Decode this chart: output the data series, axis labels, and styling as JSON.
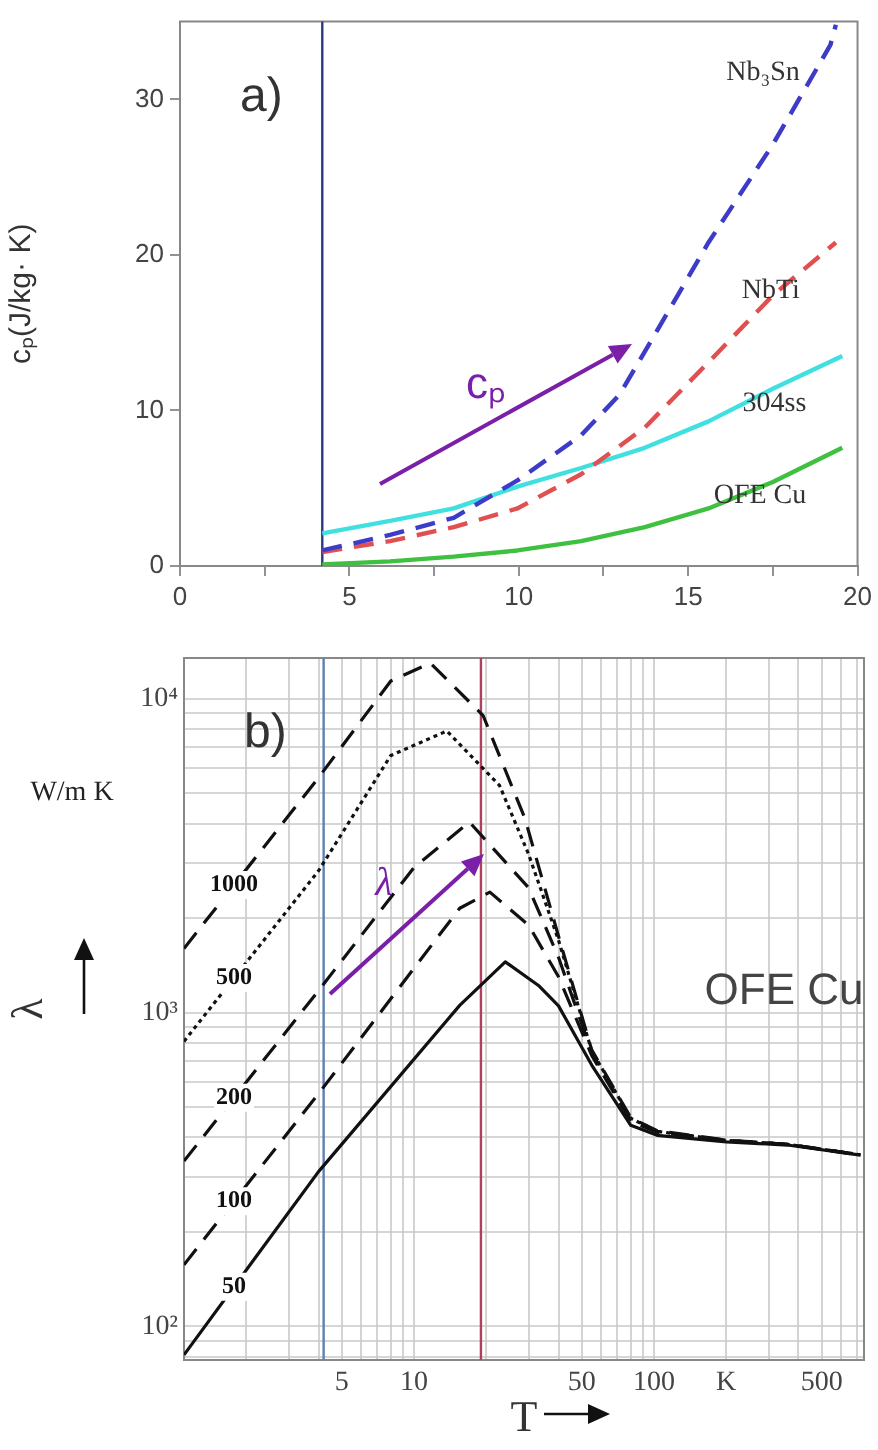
{
  "chart_data": [
    {
      "type": "line",
      "title": "a)",
      "ylabel": "cₚ(J/kg· K)",
      "xlim": [
        0,
        20
      ],
      "ylim": [
        0,
        35
      ],
      "xticks": [
        0,
        {
          "value": 2.5,
          "label": null
        },
        5,
        {
          "value": 7.5,
          "label": null
        },
        10,
        {
          "value": 12.5,
          "label": null
        },
        15,
        {
          "value": 17.5,
          "label": null
        },
        20
      ],
      "yticks": [
        0,
        10,
        20,
        30
      ],
      "grid": false,
      "marker": "none",
      "ref_lines": [
        {
          "axis": "x",
          "value": 4.2,
          "color": "#2a3a80"
        }
      ],
      "annotations": [
        "cₚ"
      ],
      "series": [
        {
          "name": "Nb₃Sn",
          "color": "#3c3cc8",
          "line_style": "dashed",
          "x": [
            4.2,
            6.2,
            8.08,
            9.96,
            11.84,
            12.97,
            14.1,
            15.6,
            17.5,
            19.2,
            19.36
          ],
          "values": [
            1.0,
            2.0,
            3.1,
            5.5,
            8.4,
            11,
            15.2,
            20.8,
            27.1,
            33.5,
            34.8
          ]
        },
        {
          "name": "NbTi",
          "color": "#e05050",
          "line_style": "dashed",
          "x": [
            4.2,
            6.2,
            8.08,
            9.96,
            11.84,
            13.72,
            15.6,
            17.5,
            19.36
          ],
          "values": [
            0.9,
            1.6,
            2.5,
            3.7,
            5.9,
            8.9,
            13.1,
            17.4,
            20.8
          ]
        },
        {
          "name": "304ss",
          "color": "#40e0e0",
          "line_style": "solid",
          "x": [
            4.2,
            6.2,
            8.08,
            9.96,
            11.84,
            13.72,
            15.6,
            17.5,
            19.55
          ],
          "values": [
            2.1,
            2.9,
            3.7,
            5.1,
            6.3,
            7.6,
            9.3,
            11.4,
            13.5
          ]
        },
        {
          "name": "OFE Cu",
          "color": "#40c040",
          "line_style": "solid",
          "x": [
            4.2,
            6.2,
            8.08,
            9.96,
            11.84,
            13.72,
            15.6,
            17.5,
            19.55
          ],
          "values": [
            0.1,
            0.3,
            0.6,
            1.0,
            1.6,
            2.5,
            3.7,
            5.4,
            7.6
          ]
        }
      ]
    },
    {
      "type": "line",
      "title": "b)",
      "ylabel": "λ",
      "xlabel": "T",
      "log": "xy",
      "xlim": [
        1.1,
        750
      ],
      "ylim": [
        78,
        13500
      ],
      "grid": true,
      "marker": "none",
      "xticks": [
        {
          "value": 2,
          "label": null
        },
        {
          "value": 3,
          "label": null
        },
        {
          "value": 4,
          "label": null
        },
        5,
        {
          "value": 6,
          "label": null
        },
        {
          "value": 7,
          "label": null
        },
        {
          "value": 8,
          "label": null
        },
        {
          "value": 9,
          "label": null
        },
        10,
        {
          "value": 20,
          "label": null
        },
        {
          "value": 30,
          "label": null
        },
        {
          "value": 40,
          "label": null
        },
        50,
        {
          "value": 60,
          "label": null
        },
        {
          "value": 70,
          "label": null
        },
        {
          "value": 80,
          "label": null
        },
        {
          "value": 90,
          "label": null
        },
        100,
        {
          "value": 200,
          "label": "K"
        },
        {
          "value": 300,
          "label": null
        },
        {
          "value": 400,
          "label": null
        },
        500,
        {
          "value": 600,
          "label": null
        },
        {
          "value": 700,
          "label": null
        }
      ],
      "yticks": [
        {
          "value": 80,
          "label": null
        },
        {
          "value": 90,
          "label": null
        },
        {
          "value": 100,
          "label": "10²"
        },
        {
          "value": 200,
          "label": null
        },
        {
          "value": 300,
          "label": null
        },
        {
          "value": 400,
          "label": null
        },
        {
          "value": 500,
          "label": null
        },
        {
          "value": 600,
          "label": null
        },
        {
          "value": 700,
          "label": null
        },
        {
          "value": 800,
          "label": null
        },
        {
          "value": 900,
          "label": null
        },
        {
          "value": 1000,
          "label": "10³"
        },
        {
          "value": 2000,
          "label": null
        },
        {
          "value": 3000,
          "label": null
        },
        {
          "value": 4000,
          "label": null
        },
        {
          "value": 5000,
          "label": null
        },
        {
          "value": 6000,
          "label": null
        },
        {
          "value": 7000,
          "label": null
        },
        {
          "value": 8000,
          "label": null
        },
        {
          "value": 9000,
          "label": null
        },
        {
          "value": 10000,
          "label": "10⁴"
        }
      ],
      "ref_lines": [
        {
          "axis": "x",
          "value": 4.2,
          "color": "#6080b0"
        },
        {
          "axis": "x",
          "value": 19,
          "color": "#b04060"
        }
      ],
      "annotations": [
        "λ",
        "OFE Cu",
        "W/m K"
      ],
      "series": [
        {
          "name": "1000",
          "color": "#111111",
          "line_style": "dashed",
          "x": [
            1.1,
            4,
            8,
            11.7,
            19.4,
            29,
            40,
            55,
            80,
            103,
            200,
            360,
            725
          ],
          "values": [
            1600,
            5610,
            11400,
            13000,
            8850,
            4150,
            1750,
            760,
            462,
            420,
            392,
            380,
            352
          ]
        },
        {
          "name": "500",
          "color": "#111111",
          "line_style": "dotted",
          "x": [
            1.1,
            4,
            8,
            13.7,
            22.7,
            30,
            40,
            55,
            80,
            103,
            200,
            360,
            725
          ],
          "values": [
            809,
            2830,
            6600,
            7900,
            5300,
            3200,
            1700,
            755,
            460,
            418,
            391,
            380,
            352
          ]
        },
        {
          "name": "200",
          "color": "#111111",
          "line_style": "dashed",
          "x": [
            1.1,
            4,
            10,
            17,
            30,
            40,
            55,
            80,
            103,
            200,
            360,
            725
          ],
          "values": [
            336,
            1175,
            2900,
            4050,
            2500,
            1500,
            745,
            455,
            418,
            391,
            380,
            352
          ]
        },
        {
          "name": "100",
          "color": "#111111",
          "line_style": "dashed",
          "x": [
            1.1,
            4,
            15.5,
            20.7,
            30,
            40,
            55,
            80,
            103,
            200,
            360,
            725
          ],
          "values": [
            157,
            551,
            2150,
            2420,
            1900,
            1300,
            730,
            450,
            415,
            390,
            380,
            351
          ]
        },
        {
          "name": "50",
          "color": "#111111",
          "line_style": "solid",
          "x": [
            1.1,
            4,
            15.5,
            24,
            33,
            40,
            55,
            80,
            103,
            200,
            360,
            725
          ],
          "values": [
            81,
            311,
            1054,
            1450,
            1220,
            1050,
            680,
            437,
            406,
            387,
            378,
            351
          ]
        }
      ]
    }
  ]
}
